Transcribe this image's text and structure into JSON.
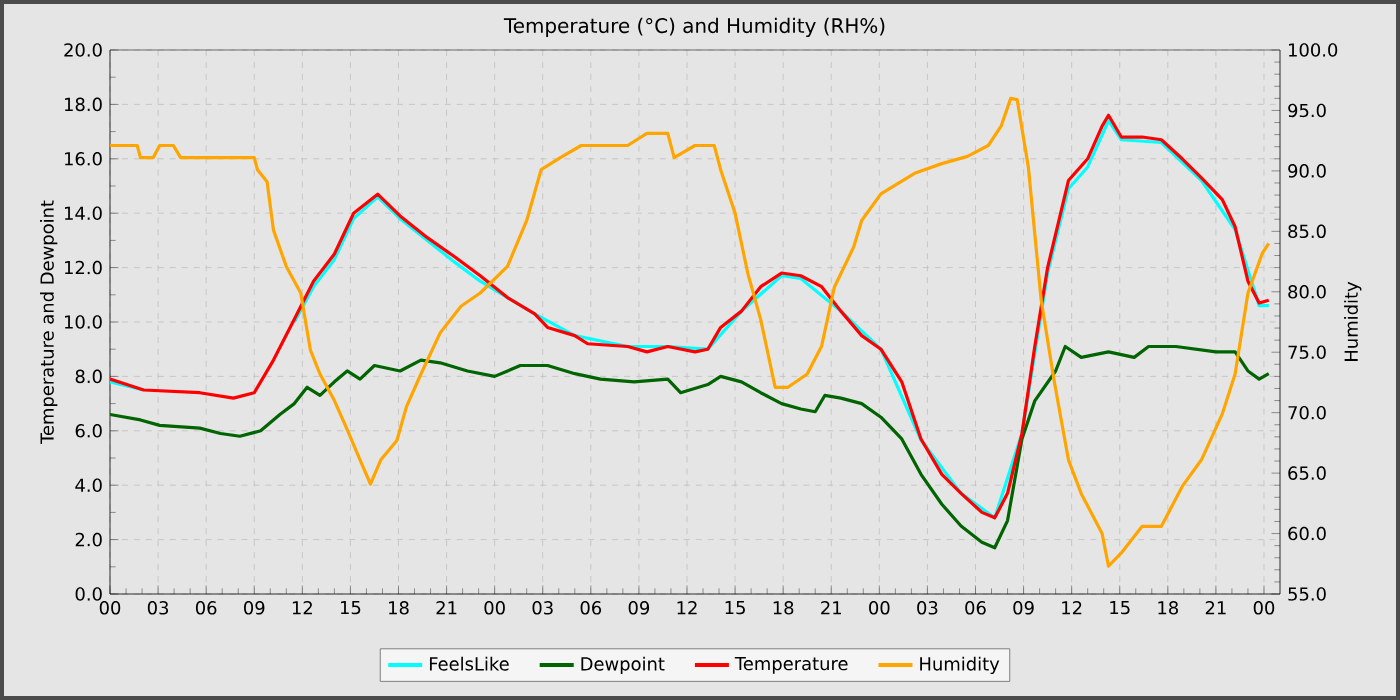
{
  "chart_data": {
    "type": "line",
    "title": "Temperature (°C) and Humidity (RH%)",
    "ylabel": "Temperature and Dewpoint",
    "y2label": "Humidity",
    "xlim": [
      0,
      73
    ],
    "ylim": [
      0,
      20
    ],
    "y2lim": [
      55,
      100
    ],
    "xticks": [
      {
        "value": 0,
        "label": "00"
      },
      {
        "value": 3,
        "label": "03"
      },
      {
        "value": 6,
        "label": "06"
      },
      {
        "value": 9,
        "label": "09"
      },
      {
        "value": 12,
        "label": "12"
      },
      {
        "value": 15,
        "label": "15"
      },
      {
        "value": 18,
        "label": "18"
      },
      {
        "value": 21,
        "label": "21"
      },
      {
        "value": 24,
        "label": "00"
      },
      {
        "value": 27,
        "label": "03"
      },
      {
        "value": 30,
        "label": "06"
      },
      {
        "value": 33,
        "label": "09"
      },
      {
        "value": 36,
        "label": "12"
      },
      {
        "value": 39,
        "label": "15"
      },
      {
        "value": 42,
        "label": "18"
      },
      {
        "value": 45,
        "label": "21"
      },
      {
        "value": 48,
        "label": "00"
      },
      {
        "value": 51,
        "label": "03"
      },
      {
        "value": 54,
        "label": "06"
      },
      {
        "value": 57,
        "label": "09"
      },
      {
        "value": 60,
        "label": "12"
      },
      {
        "value": 63,
        "label": "15"
      },
      {
        "value": 66,
        "label": "18"
      },
      {
        "value": 69,
        "label": "21"
      },
      {
        "value": 72,
        "label": "00"
      }
    ],
    "yticks": [
      {
        "value": 0,
        "label": "0.0"
      },
      {
        "value": 2,
        "label": "2.0"
      },
      {
        "value": 4,
        "label": "4.0"
      },
      {
        "value": 6,
        "label": "6.0"
      },
      {
        "value": 8,
        "label": "8.0"
      },
      {
        "value": 10,
        "label": "10.0"
      },
      {
        "value": 12,
        "label": "12.0"
      },
      {
        "value": 14,
        "label": "14.0"
      },
      {
        "value": 16,
        "label": "16.0"
      },
      {
        "value": 18,
        "label": "18.0"
      },
      {
        "value": 20,
        "label": "20.0"
      }
    ],
    "y2ticks": [
      {
        "value": 55,
        "label": "55.0"
      },
      {
        "value": 60,
        "label": "60.0"
      },
      {
        "value": 65,
        "label": "65.0"
      },
      {
        "value": 70,
        "label": "70.0"
      },
      {
        "value": 75,
        "label": "75.0"
      },
      {
        "value": 80,
        "label": "80.0"
      },
      {
        "value": 85,
        "label": "85.0"
      },
      {
        "value": 90,
        "label": "90.0"
      },
      {
        "value": 95,
        "label": "95.0"
      },
      {
        "value": 100,
        "label": "100.0"
      }
    ],
    "grid": true,
    "legend": "bottom",
    "series": [
      {
        "name": "FeelsLike",
        "color": "#00ffff",
        "x": [
          0,
          2.1,
          5.6,
          7.7,
          9,
          10.2,
          11.5,
          12.7,
          14,
          15.2,
          16.7,
          18.1,
          19.8,
          21.5,
          23.1,
          24.8,
          26.5,
          29,
          32.3,
          34.8,
          37.3,
          39.4,
          41.9,
          43.1,
          45.6,
          48.1,
          50.6,
          53.1,
          55.2,
          56.9,
          58.5,
          59.8,
          61,
          62.3,
          63.1,
          65.6,
          68.1,
          70.2,
          71.7,
          72.3
        ],
        "values": [
          7.8,
          7.5,
          null,
          null,
          null,
          null,
          10.0,
          11.3,
          12.3,
          13.8,
          14.6,
          13.8,
          13.0,
          12.2,
          11.5,
          10.9,
          10.3,
          9.5,
          9.1,
          9.1,
          9.0,
          10.4,
          11.7,
          11.6,
          10.4,
          9.0,
          5.66,
          3.7,
          2.8,
          5.9,
          11.8,
          14.9,
          15.7,
          17.4,
          16.7,
          16.6,
          15.2,
          13.4,
          10.6,
          10.6
        ]
      },
      {
        "name": "Dewpoint",
        "color": "#006400",
        "x": [
          0,
          1.9,
          3.1,
          5.6,
          6.9,
          8.1,
          9.4,
          10.6,
          11.5,
          12.3,
          13.1,
          14,
          14.8,
          15.6,
          16.5,
          18.1,
          19.4,
          20.6,
          22.3,
          24,
          25.6,
          27.3,
          29,
          30.6,
          32.7,
          34.8,
          35.6,
          37.3,
          38.1,
          39.4,
          40.6,
          41.9,
          43.1,
          44,
          44.6,
          45.6,
          46.9,
          48.1,
          49.4,
          50.6,
          51.9,
          53.1,
          54.4,
          55.2,
          56,
          56.9,
          57.7,
          59,
          59.6,
          60.6,
          62.3,
          63.9,
          64.8,
          66.5,
          69,
          70.2,
          71,
          71.7,
          72.3
        ],
        "values": [
          6.6,
          6.4,
          6.2,
          6.1,
          5.9,
          5.8,
          6.0,
          6.6,
          7.0,
          7.6,
          7.3,
          7.8,
          8.2,
          7.9,
          8.4,
          8.2,
          8.6,
          8.5,
          8.2,
          8.0,
          8.4,
          8.4,
          8.1,
          7.9,
          7.8,
          7.9,
          7.4,
          7.7,
          8.0,
          7.8,
          7.4,
          7.0,
          6.8,
          6.7,
          7.3,
          7.2,
          7.0,
          6.5,
          5.7,
          4.4,
          3.3,
          2.5,
          1.9,
          1.7,
          2.7,
          5.7,
          7.1,
          8.2,
          9.1,
          8.7,
          8.9,
          8.7,
          9.1,
          9.1,
          8.9,
          8.9,
          8.2,
          7.9,
          8.1
        ]
      },
      {
        "name": "Temperature",
        "color": "#ff0000",
        "x": [
          0,
          2.1,
          5.6,
          7.7,
          9,
          10.2,
          11.5,
          12.7,
          14,
          15.2,
          16.7,
          18.1,
          19.8,
          21.5,
          23.1,
          24.8,
          26.5,
          27.3,
          29,
          29.8,
          32.3,
          33.5,
          34.8,
          36.5,
          37.3,
          38.1,
          39.4,
          40.6,
          41.9,
          43.1,
          44.4,
          45.6,
          46.9,
          48.1,
          49.4,
          50.6,
          51.9,
          53.1,
          54.4,
          55.2,
          56,
          56.9,
          57.7,
          58.5,
          59.8,
          61,
          61.9,
          62.3,
          63.1,
          64.4,
          65.6,
          66.9,
          68.1,
          69.4,
          70.2,
          71,
          71.7,
          72.3
        ],
        "values": [
          7.9,
          7.5,
          7.4,
          7.2,
          7.4,
          8.6,
          10.1,
          11.5,
          12.5,
          14.0,
          14.7,
          13.9,
          13.1,
          12.4,
          11.7,
          10.9,
          10.3,
          9.8,
          9.5,
          9.2,
          9.1,
          8.9,
          9.1,
          8.9,
          9.0,
          9.8,
          10.4,
          11.3,
          11.8,
          11.7,
          11.3,
          10.4,
          9.5,
          9.0,
          7.8,
          5.7,
          4.4,
          3.7,
          3.0,
          2.8,
          3.7,
          5.9,
          9.1,
          12.0,
          15.2,
          16.0,
          17.2,
          17.6,
          16.8,
          16.8,
          16.7,
          16.0,
          15.3,
          14.5,
          13.5,
          11.5,
          10.7,
          10.8
        ]
      },
      {
        "name": "Humidity",
        "color": "#ffa500",
        "axis": "y2",
        "x": [
          0,
          1.7,
          1.9,
          2.7,
          3.1,
          3.96,
          4.4,
          6.9,
          9,
          9.2,
          9.8,
          10.2,
          11,
          11.9,
          12.5,
          13.1,
          14,
          14.8,
          15.6,
          16.25,
          16.9,
          17.9,
          18.5,
          19.4,
          20.6,
          21.9,
          23.1,
          24.8,
          26,
          26.9,
          28.1,
          29.4,
          32.3,
          33.5,
          34.8,
          35.2,
          36.5,
          37.7,
          38.1,
          39,
          39.8,
          40.6,
          41.5,
          42.3,
          43.5,
          44.4,
          45.2,
          46.4,
          46.9,
          48.1,
          50.2,
          51.9,
          53.5,
          54.8,
          55.6,
          56.2,
          56.6,
          57.3,
          58.1,
          58.9,
          59.8,
          60.6,
          61.9,
          62.3,
          63.1,
          64.4,
          65.6,
          66.9,
          68.1,
          69.4,
          70.2,
          71,
          71.9,
          72.3
        ],
        "values": [
          92.1,
          92.1,
          91.1,
          91.1,
          92.1,
          92.1,
          91.1,
          91.1,
          91.1,
          90.1,
          89.1,
          85.1,
          82.1,
          79.9,
          75.2,
          73.2,
          71.0,
          68.6,
          66.1,
          64.1,
          66.1,
          67.7,
          70.5,
          73.2,
          76.6,
          78.8,
          79.9,
          82.1,
          85.9,
          90.1,
          91.1,
          92.1,
          92.1,
          93.1,
          93.1,
          91.1,
          92.1,
          92.1,
          90.1,
          86.5,
          81.5,
          77.7,
          72.1,
          72.1,
          73.2,
          75.5,
          80.4,
          83.7,
          85.9,
          88.1,
          89.8,
          90.6,
          91.2,
          92.1,
          93.7,
          96.0,
          95.9,
          90.3,
          79.3,
          72.7,
          66.1,
          63.3,
          60.0,
          57.3,
          58.4,
          60.6,
          60.6,
          63.9,
          66.1,
          69.9,
          73.2,
          79.9,
          83.2,
          84.0
        ]
      }
    ]
  }
}
